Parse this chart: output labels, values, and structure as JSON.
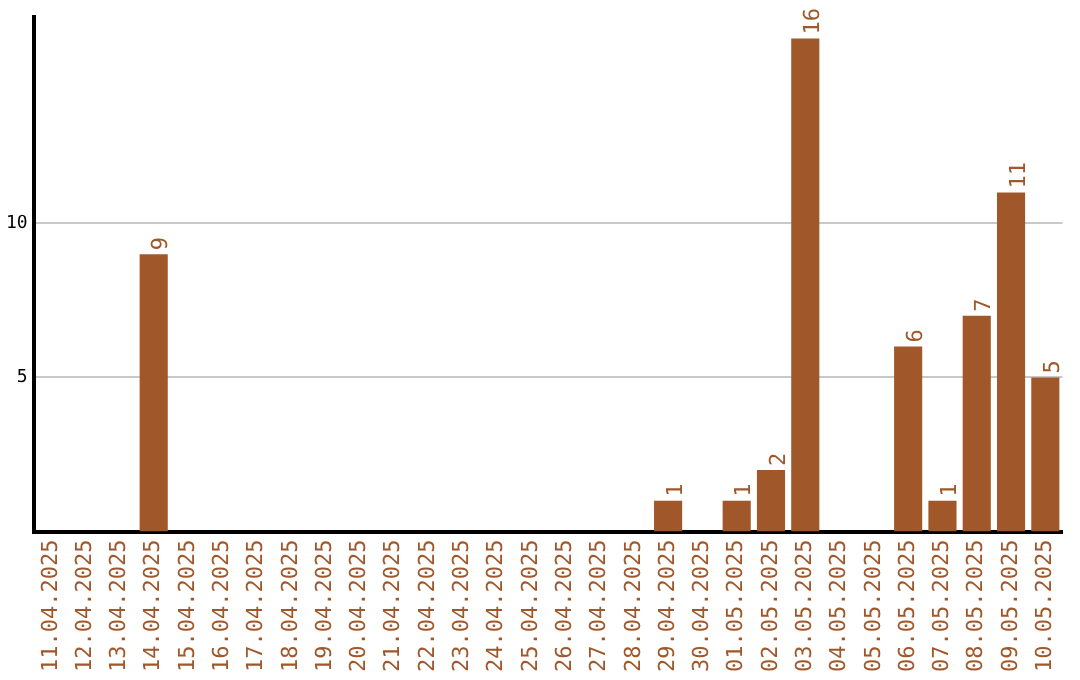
{
  "chart_data": {
    "type": "bar",
    "categories": [
      "11.04.2025",
      "12.04.2025",
      "13.04.2025",
      "14.04.2025",
      "15.04.2025",
      "16.04.2025",
      "17.04.2025",
      "18.04.2025",
      "19.04.2025",
      "20.04.2025",
      "21.04.2025",
      "22.04.2025",
      "23.04.2025",
      "24.04.2025",
      "25.04.2025",
      "26.04.2025",
      "27.04.2025",
      "28.04.2025",
      "29.04.2025",
      "30.04.2025",
      "01.05.2025",
      "02.05.2025",
      "03.05.2025",
      "04.05.2025",
      "05.05.2025",
      "06.05.2025",
      "07.05.2025",
      "08.05.2025",
      "09.05.2025",
      "10.05.2025"
    ],
    "values": [
      0,
      0,
      0,
      9,
      0,
      0,
      0,
      0,
      0,
      0,
      0,
      0,
      0,
      0,
      0,
      0,
      0,
      0,
      1,
      0,
      1,
      2,
      16,
      0,
      0,
      6,
      1,
      7,
      11,
      5
    ],
    "value_labels": [
      null,
      null,
      null,
      "9",
      null,
      null,
      null,
      null,
      null,
      null,
      null,
      null,
      null,
      null,
      null,
      null,
      null,
      null,
      "1",
      null,
      "1",
      "2",
      "16",
      null,
      null,
      "6",
      "1",
      "7",
      "11",
      "5"
    ],
    "color": "#a0572a",
    "ylim": [
      0,
      16.7
    ],
    "yticks": [
      5,
      10
    ],
    "grid": "y",
    "legend": false
  }
}
